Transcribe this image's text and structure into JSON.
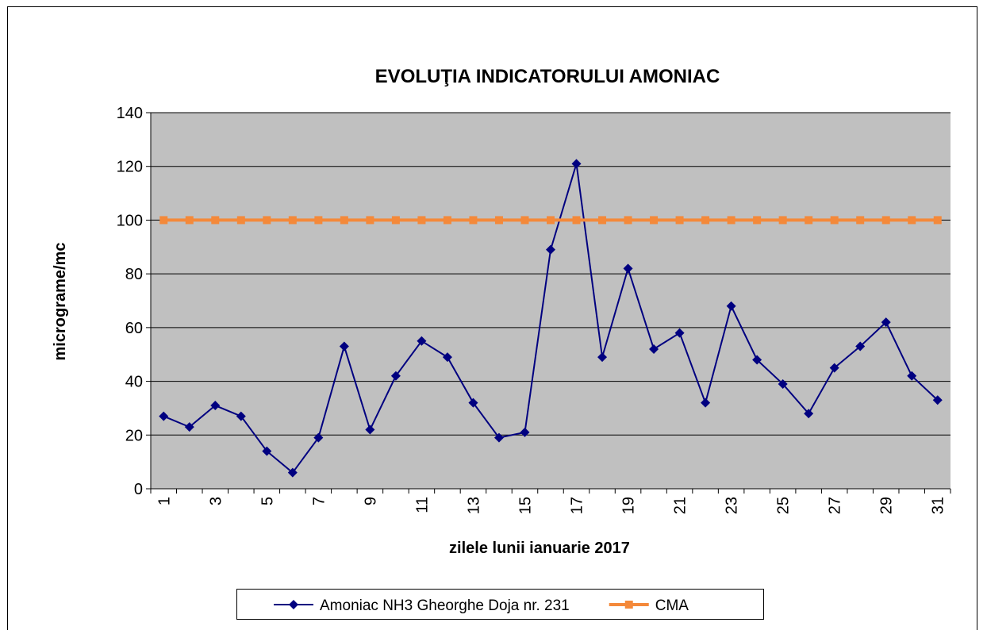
{
  "chart_data": {
    "type": "line",
    "title": "EVOLUŢIA INDICATORULUI AMONIAC",
    "xlabel": "zilele lunii ianuarie  2017",
    "ylabel": "micrograme/mc",
    "categories": [
      "1",
      null,
      "3",
      null,
      "5",
      null,
      "7",
      null,
      "9",
      null,
      "11",
      null,
      "13",
      null,
      "15",
      null,
      "17",
      null,
      "19",
      null,
      "21",
      null,
      "23",
      null,
      "25",
      null,
      "27",
      null,
      "29",
      null,
      "31"
    ],
    "series": [
      {
        "name": "Amoniac NH3 Gheorghe Doja nr. 231",
        "color": "#000080",
        "marker": "diamond",
        "values": [
          27,
          23,
          31,
          27,
          14,
          6,
          19,
          53,
          22,
          42,
          55,
          49,
          32,
          19,
          21,
          89,
          121,
          49,
          82,
          52,
          58,
          32,
          68,
          48,
          39,
          28,
          45,
          53,
          62,
          42,
          33
        ]
      },
      {
        "name": "CMA",
        "color": "#f4893a",
        "marker": "square",
        "values": [
          100,
          100,
          100,
          100,
          100,
          100,
          100,
          100,
          100,
          100,
          100,
          100,
          100,
          100,
          100,
          100,
          100,
          100,
          100,
          100,
          100,
          100,
          100,
          100,
          100,
          100,
          100,
          100,
          100,
          100,
          100
        ]
      }
    ],
    "ylim": [
      0,
      140
    ],
    "yticks": [
      0,
      20,
      40,
      60,
      80,
      100,
      120,
      140
    ],
    "grid": true,
    "legend": "bottom",
    "plot_background": "#c0c0c0"
  }
}
